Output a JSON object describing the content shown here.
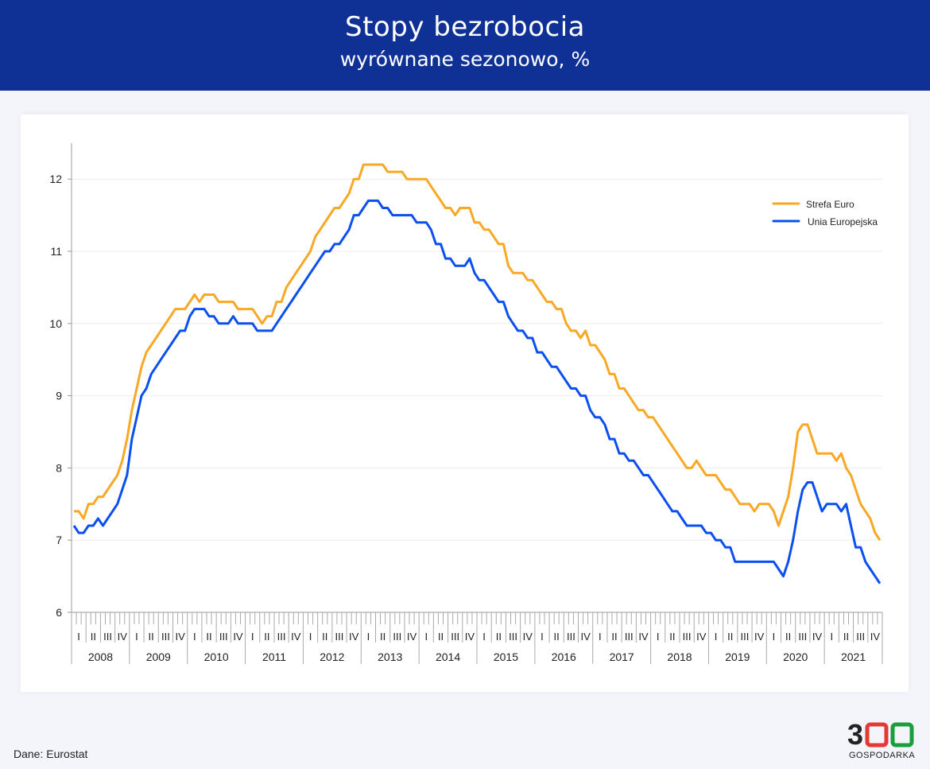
{
  "header": {
    "title": "Stopy bezrobocia",
    "subtitle": "wyrównane sezonowo, %"
  },
  "source": "Dane: Eurostat",
  "logo": {
    "text": "300",
    "sub": "GOSPODARKA"
  },
  "chart_data": {
    "type": "line",
    "title": "Stopy bezrobocia",
    "subtitle": "wyrównane sezonowo, %",
    "xlabel": "",
    "ylabel": "",
    "ylim": [
      6,
      12.5
    ],
    "yticks": [
      6,
      7,
      8,
      9,
      10,
      11,
      12
    ],
    "grid": true,
    "legend": "top-right",
    "years": [
      "2008",
      "2009",
      "2010",
      "2011",
      "2012",
      "2013",
      "2014",
      "2015",
      "2016",
      "2017",
      "2018",
      "2019",
      "2020",
      "2021"
    ],
    "quarters": [
      "I",
      "II",
      "III",
      "IV"
    ],
    "frequency": "monthly",
    "series": [
      {
        "name": "Strefa Euro",
        "color": "#f9a825",
        "values": [
          7.4,
          7.4,
          7.3,
          7.5,
          7.5,
          7.6,
          7.6,
          7.7,
          7.8,
          7.9,
          8.1,
          8.4,
          8.8,
          9.1,
          9.4,
          9.6,
          9.7,
          9.8,
          9.9,
          10.0,
          10.1,
          10.2,
          10.2,
          10.2,
          10.3,
          10.4,
          10.3,
          10.4,
          10.4,
          10.4,
          10.3,
          10.3,
          10.3,
          10.3,
          10.2,
          10.2,
          10.2,
          10.2,
          10.1,
          10.0,
          10.1,
          10.1,
          10.3,
          10.3,
          10.5,
          10.6,
          10.7,
          10.8,
          10.9,
          11.0,
          11.2,
          11.3,
          11.4,
          11.5,
          11.6,
          11.6,
          11.7,
          11.8,
          12.0,
          12.0,
          12.2,
          12.2,
          12.2,
          12.2,
          12.2,
          12.1,
          12.1,
          12.1,
          12.1,
          12.0,
          12.0,
          12.0,
          12.0,
          12.0,
          11.9,
          11.8,
          11.7,
          11.6,
          11.6,
          11.5,
          11.6,
          11.6,
          11.6,
          11.4,
          11.4,
          11.3,
          11.3,
          11.2,
          11.1,
          11.1,
          10.8,
          10.7,
          10.7,
          10.7,
          10.6,
          10.6,
          10.5,
          10.4,
          10.3,
          10.3,
          10.2,
          10.2,
          10.0,
          9.9,
          9.9,
          9.8,
          9.9,
          9.7,
          9.7,
          9.6,
          9.5,
          9.3,
          9.3,
          9.1,
          9.1,
          9.0,
          8.9,
          8.8,
          8.8,
          8.7,
          8.7,
          8.6,
          8.5,
          8.4,
          8.3,
          8.2,
          8.1,
          8.0,
          8.0,
          8.1,
          8.0,
          7.9,
          7.9,
          7.9,
          7.8,
          7.7,
          7.7,
          7.6,
          7.5,
          7.5,
          7.5,
          7.4,
          7.5,
          7.5,
          7.5,
          7.4,
          7.2,
          7.4,
          7.6,
          8.0,
          8.5,
          8.6,
          8.6,
          8.4,
          8.2,
          8.2,
          8.2,
          8.2,
          8.1,
          8.2,
          8.0,
          7.9,
          7.7,
          7.5,
          7.4,
          7.3,
          7.1,
          7.0
        ]
      },
      {
        "name": "Unia Europejska",
        "color": "#0a4ff0",
        "values": [
          7.2,
          7.1,
          7.1,
          7.2,
          7.2,
          7.3,
          7.2,
          7.3,
          7.4,
          7.5,
          7.7,
          7.9,
          8.4,
          8.7,
          9.0,
          9.1,
          9.3,
          9.4,
          9.5,
          9.6,
          9.7,
          9.8,
          9.9,
          9.9,
          10.1,
          10.2,
          10.2,
          10.2,
          10.1,
          10.1,
          10.0,
          10.0,
          10.0,
          10.1,
          10.0,
          10.0,
          10.0,
          10.0,
          9.9,
          9.9,
          9.9,
          9.9,
          10.0,
          10.1,
          10.2,
          10.3,
          10.4,
          10.5,
          10.6,
          10.7,
          10.8,
          10.9,
          11.0,
          11.0,
          11.1,
          11.1,
          11.2,
          11.3,
          11.5,
          11.5,
          11.6,
          11.7,
          11.7,
          11.7,
          11.6,
          11.6,
          11.5,
          11.5,
          11.5,
          11.5,
          11.5,
          11.4,
          11.4,
          11.4,
          11.3,
          11.1,
          11.1,
          10.9,
          10.9,
          10.8,
          10.8,
          10.8,
          10.9,
          10.7,
          10.6,
          10.6,
          10.5,
          10.4,
          10.3,
          10.3,
          10.1,
          10.0,
          9.9,
          9.9,
          9.8,
          9.8,
          9.6,
          9.6,
          9.5,
          9.4,
          9.4,
          9.3,
          9.2,
          9.1,
          9.1,
          9.0,
          9.0,
          8.8,
          8.7,
          8.7,
          8.6,
          8.4,
          8.4,
          8.2,
          8.2,
          8.1,
          8.1,
          8.0,
          7.9,
          7.9,
          7.8,
          7.7,
          7.6,
          7.5,
          7.4,
          7.4,
          7.3,
          7.2,
          7.2,
          7.2,
          7.2,
          7.1,
          7.1,
          7.0,
          7.0,
          6.9,
          6.9,
          6.7,
          6.7,
          6.7,
          6.7,
          6.7,
          6.7,
          6.7,
          6.7,
          6.7,
          6.6,
          6.5,
          6.7,
          7.0,
          7.4,
          7.7,
          7.8,
          7.8,
          7.6,
          7.4,
          7.5,
          7.5,
          7.5,
          7.4,
          7.5,
          7.2,
          6.9,
          6.9,
          6.7,
          6.6,
          6.5,
          6.4
        ]
      }
    ]
  }
}
